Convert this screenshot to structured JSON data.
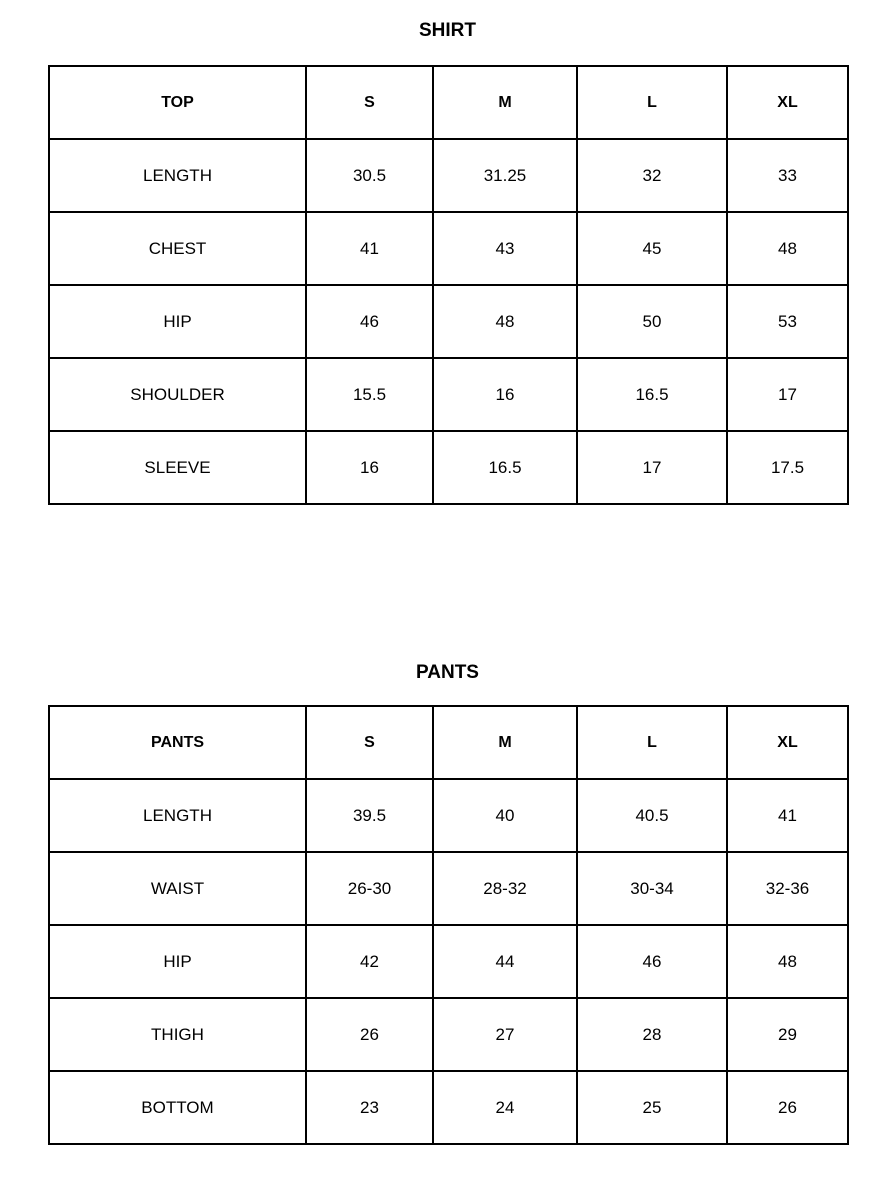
{
  "shirt": {
    "title": "SHIRT",
    "header": [
      "TOP",
      "S",
      "M",
      "L",
      "XL"
    ],
    "rows": [
      [
        "LENGTH",
        "30.5",
        "31.25",
        "32",
        "33"
      ],
      [
        "CHEST",
        "41",
        "43",
        "45",
        "48"
      ],
      [
        "HIP",
        "46",
        "48",
        "50",
        "53"
      ],
      [
        "SHOULDER",
        "15.5",
        "16",
        "16.5",
        "17"
      ],
      [
        "SLEEVE",
        "16",
        "16.5",
        "17",
        "17.5"
      ]
    ]
  },
  "pants": {
    "title": "PANTS",
    "header": [
      "PANTS",
      "S",
      "M",
      "L",
      "XL"
    ],
    "rows": [
      [
        "LENGTH",
        "39.5",
        "40",
        "40.5",
        "41"
      ],
      [
        "WAIST",
        "26-30",
        "28-32",
        "30-34",
        "32-36"
      ],
      [
        "HIP",
        "42",
        "44",
        "46",
        "48"
      ],
      [
        "THIGH",
        "26",
        "27",
        "28",
        "29"
      ],
      [
        "BOTTOM",
        "23",
        "24",
        "25",
        "26"
      ]
    ]
  }
}
